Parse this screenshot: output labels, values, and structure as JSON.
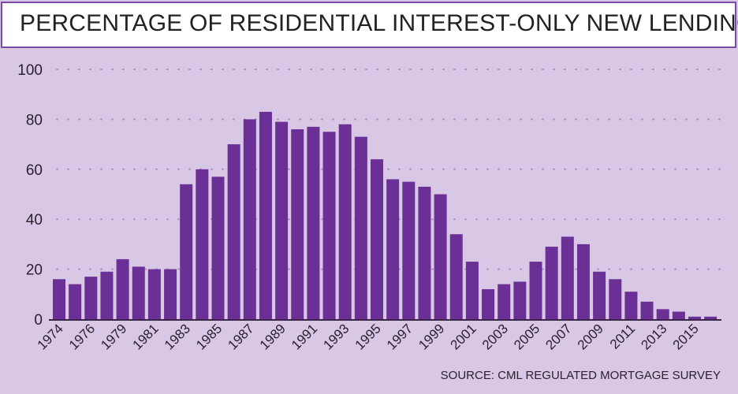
{
  "header": {
    "title": "PERCENTAGE OF RESIDENTIAL INTEREST-ONLY NEW LENDING"
  },
  "footer": {
    "source": "SOURCE: CML REGULATED MORTGAGE SURVEY"
  },
  "colors": {
    "bar": "#6a3096",
    "background": "#d8c8e6",
    "title_border": "#7a4ca6",
    "text": "#2a2030"
  },
  "chart_data": {
    "type": "bar",
    "title": "PERCENTAGE OF RESIDENTIAL INTEREST-ONLY NEW LENDING",
    "xlabel": "",
    "ylabel": "",
    "ylim": [
      0,
      100
    ],
    "yticks": [
      0,
      20,
      40,
      60,
      80,
      100
    ],
    "grid": "horizontal dotted",
    "tick_labels": [
      "1974",
      "1976",
      "1979",
      "1981",
      "1983",
      "1985",
      "1987",
      "1989",
      "1991",
      "1993",
      "1995",
      "1997",
      "1999",
      "2001",
      "2003",
      "2005",
      "2007",
      "2009",
      "2011",
      "2013",
      "2015"
    ],
    "tick_label_every_n_bars": 2,
    "values": [
      16,
      14,
      17,
      19,
      24,
      21,
      20,
      20,
      54,
      60,
      57,
      70,
      80,
      83,
      79,
      76,
      77,
      75,
      78,
      73,
      64,
      56,
      55,
      53,
      50,
      34,
      23,
      12,
      14,
      15,
      23,
      29,
      33,
      30,
      19,
      16,
      11,
      7,
      4,
      3,
      1,
      1
    ]
  }
}
